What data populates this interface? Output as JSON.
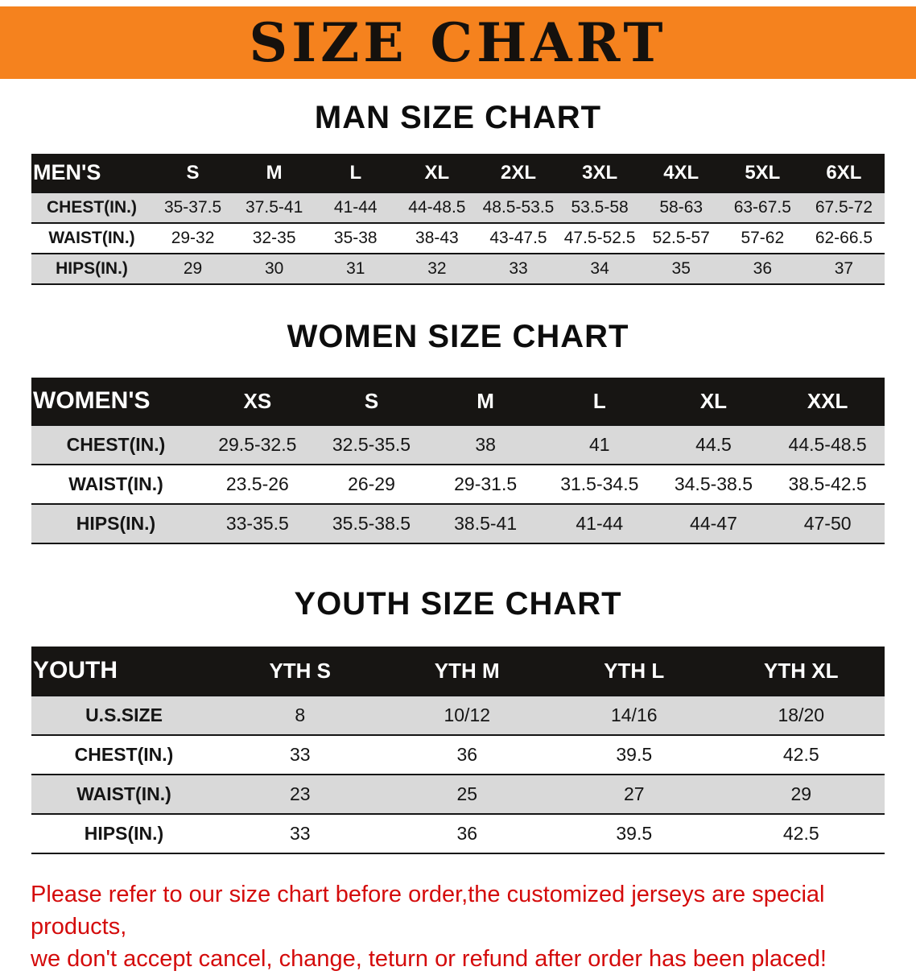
{
  "banner": {
    "title": "SIZE CHART"
  },
  "colors": {
    "banner_bg": "#f5821e",
    "table_header_bg": "#171513",
    "row_stripe": "#d9d9d9",
    "disclaimer_red": "#d40b0b"
  },
  "sections": [
    {
      "heading": "MAN SIZE CHART",
      "table": {
        "header": [
          "MEN'S",
          "S",
          "M",
          "L",
          "XL",
          "2XL",
          "3XL",
          "4XL",
          "5XL",
          "6XL"
        ],
        "rows": [
          [
            "CHEST(IN.)",
            "35-37.5",
            "37.5-41",
            "41-44",
            "44-48.5",
            "48.5-53.5",
            "53.5-58",
            "58-63",
            "63-67.5",
            "67.5-72"
          ],
          [
            "WAIST(IN.)",
            "29-32",
            "32-35",
            "35-38",
            "38-43",
            "43-47.5",
            "47.5-52.5",
            "52.5-57",
            "57-62",
            "62-66.5"
          ],
          [
            "HIPS(IN.)",
            "29",
            "30",
            "31",
            "32",
            "33",
            "34",
            "35",
            "36",
            "37"
          ]
        ]
      }
    },
    {
      "heading": "WOMEN SIZE CHART",
      "table": {
        "header": [
          "WOMEN'S",
          "XS",
          "S",
          "M",
          "L",
          "XL",
          "XXL"
        ],
        "rows": [
          [
            "CHEST(IN.)",
            "29.5-32.5",
            "32.5-35.5",
            "38",
            "41",
            "44.5",
            "44.5-48.5"
          ],
          [
            "WAIST(IN.)",
            "23.5-26",
            "26-29",
            "29-31.5",
            "31.5-34.5",
            "34.5-38.5",
            "38.5-42.5"
          ],
          [
            "HIPS(IN.)",
            "33-35.5",
            "35.5-38.5",
            "38.5-41",
            "41-44",
            "44-47",
            "47-50"
          ]
        ]
      }
    },
    {
      "heading": "YOUTH SIZE CHART",
      "table": {
        "header": [
          "YOUTH",
          "YTH S",
          "YTH M",
          "YTH L",
          "YTH XL"
        ],
        "rows": [
          [
            "U.S.SIZE",
            "8",
            "10/12",
            "14/16",
            "18/20"
          ],
          [
            "CHEST(IN.)",
            "33",
            "36",
            "39.5",
            "42.5"
          ],
          [
            "WAIST(IN.)",
            "23",
            "25",
            "27",
            "29"
          ],
          [
            "HIPS(IN.)",
            "33",
            "36",
            "39.5",
            "42.5"
          ]
        ]
      }
    }
  ],
  "note": {
    "line1": "Please refer to our size chart before order,the customized jerseys are special products,",
    "line2": "we don't accept cancel, change, teturn or refund after order has been placed!"
  }
}
